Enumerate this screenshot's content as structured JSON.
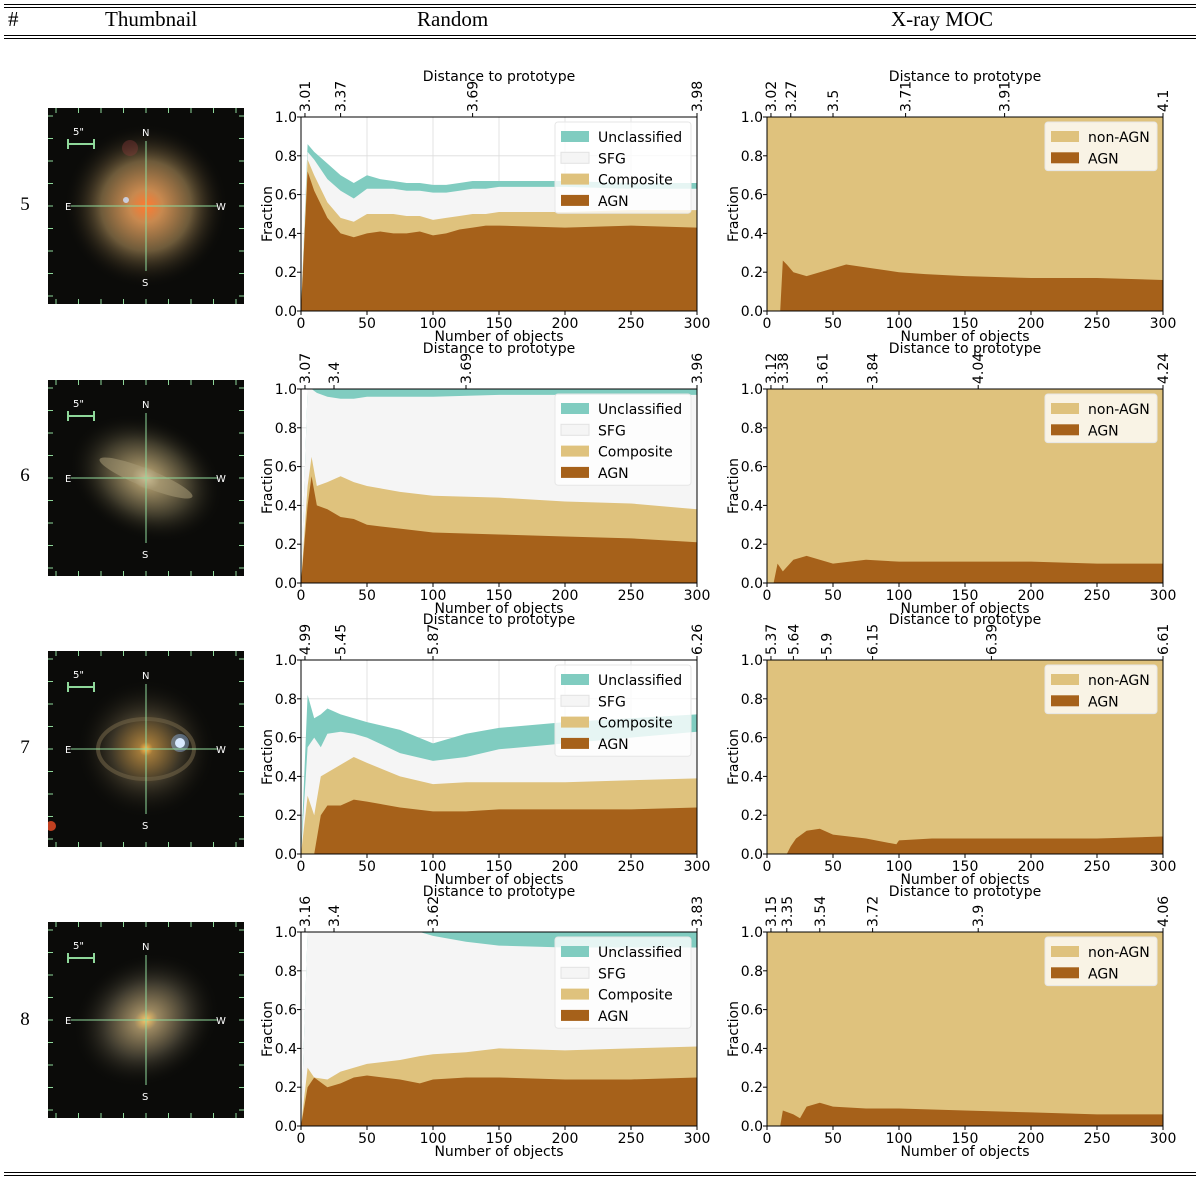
{
  "table": {
    "headers": {
      "num": "#",
      "thumbnail": "Thumbnail",
      "random": "Random",
      "xray": "X-ray MOC"
    },
    "compass": {
      "n": "N",
      "s": "S",
      "e": "E",
      "w": "W",
      "scale": "5\""
    }
  },
  "colors": {
    "unclassified": "#80ccc0",
    "sfg": "#f5f5f5",
    "composite": "#dfc27d",
    "agn": "#a6611a",
    "nonagn": "#dfc27d"
  },
  "chart_data": [
    {
      "type": "area",
      "row": "5",
      "panel": "Random",
      "title": "Distance to prototype",
      "xlabel": "Number of objects",
      "ylabel": "Fraction",
      "xlim": [
        0,
        300
      ],
      "ylim": [
        0.0,
        1.0
      ],
      "xticks": [
        "0",
        "50",
        "100",
        "150",
        "200",
        "250",
        "300"
      ],
      "yticks": [
        "0.0",
        "0.2",
        "0.4",
        "0.6",
        "0.8",
        "1.0"
      ],
      "top_ticks": [
        {
          "x": 3,
          "label": "3.01"
        },
        {
          "x": 30,
          "label": "3.37"
        },
        {
          "x": 130,
          "label": "3.69"
        },
        {
          "x": 300,
          "label": "3.98"
        }
      ],
      "x": [
        0,
        5,
        10,
        20,
        30,
        40,
        50,
        60,
        70,
        80,
        90,
        100,
        110,
        120,
        130,
        140,
        150,
        200,
        250,
        300
      ],
      "series": [
        {
          "name": "AGN",
          "values": [
            0.0,
            0.72,
            0.62,
            0.48,
            0.4,
            0.38,
            0.4,
            0.41,
            0.4,
            0.4,
            0.41,
            0.39,
            0.4,
            0.42,
            0.43,
            0.44,
            0.44,
            0.43,
            0.44,
            0.43
          ]
        },
        {
          "name": "Composite",
          "values": [
            0.0,
            0.78,
            0.7,
            0.56,
            0.48,
            0.46,
            0.5,
            0.5,
            0.5,
            0.49,
            0.49,
            0.47,
            0.48,
            0.49,
            0.5,
            0.5,
            0.51,
            0.51,
            0.52,
            0.52
          ]
        },
        {
          "name": "SFG",
          "values": [
            0.0,
            0.82,
            0.78,
            0.68,
            0.62,
            0.58,
            0.63,
            0.63,
            0.63,
            0.62,
            0.62,
            0.61,
            0.61,
            0.62,
            0.63,
            0.63,
            0.64,
            0.64,
            0.63,
            0.63
          ]
        },
        {
          "name": "Unclassified",
          "values": [
            0.0,
            0.86,
            0.82,
            0.76,
            0.7,
            0.66,
            0.7,
            0.68,
            0.67,
            0.66,
            0.66,
            0.65,
            0.65,
            0.66,
            0.67,
            0.67,
            0.67,
            0.67,
            0.66,
            0.66
          ]
        }
      ],
      "legend": [
        "Unclassified",
        "SFG",
        "Composite",
        "AGN"
      ]
    },
    {
      "type": "area",
      "row": "5",
      "panel": "X-ray MOC",
      "title": "Distance to prototype",
      "xlabel": "Number of objects",
      "ylabel": "Fraction",
      "xlim": [
        0,
        300
      ],
      "ylim": [
        0.0,
        1.0
      ],
      "xticks": [
        "0",
        "50",
        "100",
        "150",
        "200",
        "250",
        "300"
      ],
      "yticks": [
        "0.0",
        "0.2",
        "0.4",
        "0.6",
        "0.8",
        "1.0"
      ],
      "top_ticks": [
        {
          "x": 3,
          "label": "3.02"
        },
        {
          "x": 18,
          "label": "3.27"
        },
        {
          "x": 50,
          "label": "3.5"
        },
        {
          "x": 105,
          "label": "3.71"
        },
        {
          "x": 180,
          "label": "3.91"
        },
        {
          "x": 300,
          "label": "4.1"
        }
      ],
      "x": [
        0,
        10,
        12,
        15,
        20,
        30,
        40,
        50,
        60,
        80,
        100,
        120,
        150,
        200,
        250,
        300
      ],
      "series": [
        {
          "name": "AGN",
          "values": [
            0.0,
            0.0,
            0.26,
            0.24,
            0.2,
            0.18,
            0.2,
            0.22,
            0.24,
            0.22,
            0.2,
            0.19,
            0.18,
            0.17,
            0.17,
            0.16
          ]
        },
        {
          "name": "non-AGN",
          "values": [
            1.0,
            1.0,
            1.0,
            1.0,
            1.0,
            1.0,
            1.0,
            1.0,
            1.0,
            1.0,
            1.0,
            1.0,
            1.0,
            1.0,
            1.0,
            1.0
          ]
        }
      ],
      "legend": [
        "non-AGN",
        "AGN"
      ]
    },
    {
      "type": "area",
      "row": "6",
      "panel": "Random",
      "title": "Distance to prototype",
      "xlabel": "Number of objects",
      "ylabel": "Fraction",
      "xlim": [
        0,
        300
      ],
      "ylim": [
        0.0,
        1.0
      ],
      "xticks": [
        "0",
        "50",
        "100",
        "150",
        "200",
        "250",
        "300"
      ],
      "yticks": [
        "0.0",
        "0.2",
        "0.4",
        "0.6",
        "0.8",
        "1.0"
      ],
      "top_ticks": [
        {
          "x": 3,
          "label": "3.07"
        },
        {
          "x": 25,
          "label": "3.4"
        },
        {
          "x": 125,
          "label": "3.69"
        },
        {
          "x": 300,
          "label": "3.96"
        }
      ],
      "x": [
        0,
        5,
        8,
        12,
        20,
        30,
        40,
        50,
        75,
        100,
        150,
        200,
        250,
        300
      ],
      "series": [
        {
          "name": "AGN",
          "values": [
            0.0,
            0.4,
            0.55,
            0.4,
            0.38,
            0.34,
            0.33,
            0.3,
            0.28,
            0.26,
            0.25,
            0.24,
            0.23,
            0.21
          ]
        },
        {
          "name": "Composite",
          "values": [
            0.0,
            0.5,
            0.65,
            0.5,
            0.52,
            0.55,
            0.52,
            0.5,
            0.47,
            0.45,
            0.44,
            0.42,
            0.41,
            0.38
          ]
        },
        {
          "name": "SFG",
          "values": [
            0.0,
            1.0,
            1.0,
            0.98,
            0.96,
            0.95,
            0.95,
            0.96,
            0.96,
            0.96,
            0.97,
            0.97,
            0.97,
            0.97
          ]
        },
        {
          "name": "Unclassified",
          "values": [
            0.0,
            1.0,
            1.0,
            1.0,
            1.0,
            1.0,
            1.0,
            1.0,
            1.0,
            1.0,
            1.0,
            1.0,
            1.0,
            1.0
          ]
        }
      ],
      "legend": [
        "Unclassified",
        "SFG",
        "Composite",
        "AGN"
      ]
    },
    {
      "type": "area",
      "row": "6",
      "panel": "X-ray MOC",
      "title": "Distance to prototype",
      "xlabel": "Number of objects",
      "ylabel": "Fraction",
      "xlim": [
        0,
        300
      ],
      "ylim": [
        0.0,
        1.0
      ],
      "xticks": [
        "0",
        "50",
        "100",
        "150",
        "200",
        "250",
        "300"
      ],
      "yticks": [
        "0.0",
        "0.2",
        "0.4",
        "0.6",
        "0.8",
        "1.0"
      ],
      "top_ticks": [
        {
          "x": 3,
          "label": "3.12"
        },
        {
          "x": 12,
          "label": "3.38"
        },
        {
          "x": 42,
          "label": "3.61"
        },
        {
          "x": 80,
          "label": "3.84"
        },
        {
          "x": 160,
          "label": "4.04"
        },
        {
          "x": 300,
          "label": "4.24"
        }
      ],
      "x": [
        0,
        5,
        8,
        12,
        20,
        30,
        40,
        50,
        75,
        100,
        150,
        200,
        250,
        300
      ],
      "series": [
        {
          "name": "AGN",
          "values": [
            0.0,
            0.0,
            0.1,
            0.06,
            0.12,
            0.14,
            0.12,
            0.1,
            0.12,
            0.11,
            0.11,
            0.11,
            0.1,
            0.1
          ]
        },
        {
          "name": "non-AGN",
          "values": [
            1.0,
            1.0,
            1.0,
            1.0,
            1.0,
            1.0,
            1.0,
            1.0,
            1.0,
            1.0,
            1.0,
            1.0,
            1.0,
            1.0
          ]
        }
      ],
      "legend": [
        "non-AGN",
        "AGN"
      ]
    },
    {
      "type": "area",
      "row": "7",
      "panel": "Random",
      "title": "Distance to prototype",
      "xlabel": "Number of objects",
      "ylabel": "Fraction",
      "xlim": [
        0,
        300
      ],
      "ylim": [
        0.0,
        1.0
      ],
      "xticks": [
        "0",
        "50",
        "100",
        "150",
        "200",
        "250",
        "300"
      ],
      "yticks": [
        "0.0",
        "0.2",
        "0.4",
        "0.6",
        "0.8",
        "1.0"
      ],
      "top_ticks": [
        {
          "x": 3,
          "label": "4.99"
        },
        {
          "x": 30,
          "label": "5.45"
        },
        {
          "x": 100,
          "label": "5.87"
        },
        {
          "x": 300,
          "label": "6.26"
        }
      ],
      "x": [
        0,
        5,
        10,
        15,
        20,
        30,
        40,
        50,
        75,
        100,
        125,
        150,
        200,
        250,
        300
      ],
      "series": [
        {
          "name": "AGN",
          "values": [
            0.0,
            0.0,
            0.0,
            0.2,
            0.25,
            0.25,
            0.28,
            0.27,
            0.24,
            0.22,
            0.22,
            0.23,
            0.23,
            0.23,
            0.24
          ]
        },
        {
          "name": "Composite",
          "values": [
            0.0,
            0.3,
            0.2,
            0.4,
            0.42,
            0.46,
            0.5,
            0.47,
            0.4,
            0.36,
            0.37,
            0.37,
            0.37,
            0.38,
            0.39
          ]
        },
        {
          "name": "SFG",
          "values": [
            0.0,
            0.55,
            0.6,
            0.55,
            0.62,
            0.63,
            0.62,
            0.6,
            0.52,
            0.48,
            0.5,
            0.54,
            0.57,
            0.6,
            0.63
          ]
        },
        {
          "name": "Unclassified",
          "values": [
            0.0,
            0.82,
            0.7,
            0.72,
            0.75,
            0.72,
            0.7,
            0.68,
            0.64,
            0.57,
            0.62,
            0.65,
            0.68,
            0.7,
            0.72
          ]
        }
      ],
      "legend": [
        "Unclassified",
        "SFG",
        "Composite",
        "AGN"
      ]
    },
    {
      "type": "area",
      "row": "7",
      "panel": "X-ray MOC",
      "title": "Distance to prototype",
      "xlabel": "Number of objects",
      "ylabel": "Fraction",
      "xlim": [
        0,
        300
      ],
      "ylim": [
        0.0,
        1.0
      ],
      "xticks": [
        "0",
        "50",
        "100",
        "150",
        "200",
        "250",
        "300"
      ],
      "yticks": [
        "0.0",
        "0.2",
        "0.4",
        "0.6",
        "0.8",
        "1.0"
      ],
      "top_ticks": [
        {
          "x": 3,
          "label": "5.37"
        },
        {
          "x": 20,
          "label": "5.64"
        },
        {
          "x": 45,
          "label": "5.9"
        },
        {
          "x": 80,
          "label": "6.15"
        },
        {
          "x": 170,
          "label": "6.39"
        },
        {
          "x": 300,
          "label": "6.61"
        }
      ],
      "x": [
        0,
        15,
        18,
        22,
        30,
        40,
        50,
        75,
        98,
        100,
        125,
        150,
        200,
        250,
        300
      ],
      "series": [
        {
          "name": "AGN",
          "values": [
            0.0,
            0.0,
            0.04,
            0.08,
            0.12,
            0.13,
            0.1,
            0.08,
            0.05,
            0.07,
            0.08,
            0.08,
            0.08,
            0.08,
            0.09
          ]
        },
        {
          "name": "non-AGN",
          "values": [
            1.0,
            1.0,
            1.0,
            1.0,
            1.0,
            1.0,
            1.0,
            1.0,
            1.0,
            1.0,
            1.0,
            1.0,
            1.0,
            1.0,
            1.0
          ]
        }
      ],
      "legend": [
        "non-AGN",
        "AGN"
      ]
    },
    {
      "type": "area",
      "row": "8",
      "panel": "Random",
      "title": "Distance to prototype",
      "xlabel": "Number of objects",
      "ylabel": "Fraction",
      "xlim": [
        0,
        300
      ],
      "ylim": [
        0.0,
        1.0
      ],
      "xticks": [
        "0",
        "50",
        "100",
        "150",
        "200",
        "250",
        "300"
      ],
      "yticks": [
        "0.0",
        "0.2",
        "0.4",
        "0.6",
        "0.8",
        "1.0"
      ],
      "top_ticks": [
        {
          "x": 3,
          "label": "3.16"
        },
        {
          "x": 25,
          "label": "3.4"
        },
        {
          "x": 100,
          "label": "3.62"
        },
        {
          "x": 300,
          "label": "3.83"
        }
      ],
      "x": [
        0,
        5,
        10,
        20,
        30,
        40,
        50,
        75,
        90,
        100,
        125,
        150,
        200,
        250,
        300
      ],
      "series": [
        {
          "name": "AGN",
          "values": [
            0.0,
            0.2,
            0.25,
            0.2,
            0.22,
            0.25,
            0.26,
            0.24,
            0.22,
            0.24,
            0.25,
            0.25,
            0.24,
            0.24,
            0.25
          ]
        },
        {
          "name": "Composite",
          "values": [
            0.0,
            0.3,
            0.25,
            0.24,
            0.28,
            0.3,
            0.32,
            0.34,
            0.36,
            0.37,
            0.38,
            0.4,
            0.39,
            0.4,
            0.41
          ]
        },
        {
          "name": "SFG",
          "values": [
            0.0,
            1.0,
            1.0,
            1.0,
            1.0,
            1.0,
            1.0,
            1.0,
            1.0,
            0.98,
            0.95,
            0.93,
            0.92,
            0.92,
            0.92
          ]
        },
        {
          "name": "Unclassified",
          "values": [
            0.0,
            1.0,
            1.0,
            1.0,
            1.0,
            1.0,
            1.0,
            1.0,
            1.0,
            1.0,
            1.0,
            1.0,
            1.0,
            1.0,
            1.0
          ]
        }
      ],
      "legend": [
        "Unclassified",
        "SFG",
        "Composite",
        "AGN"
      ]
    },
    {
      "type": "area",
      "row": "8",
      "panel": "X-ray MOC",
      "title": "Distance to prototype",
      "xlabel": "Number of objects",
      "ylabel": "Fraction",
      "xlim": [
        0,
        300
      ],
      "ylim": [
        0.0,
        1.0
      ],
      "xticks": [
        "0",
        "50",
        "100",
        "150",
        "200",
        "250",
        "300"
      ],
      "yticks": [
        "0.0",
        "0.2",
        "0.4",
        "0.6",
        "0.8",
        "1.0"
      ],
      "top_ticks": [
        {
          "x": 3,
          "label": "3.15"
        },
        {
          "x": 15,
          "label": "3.35"
        },
        {
          "x": 40,
          "label": "3.54"
        },
        {
          "x": 80,
          "label": "3.72"
        },
        {
          "x": 160,
          "label": "3.9"
        },
        {
          "x": 300,
          "label": "4.06"
        }
      ],
      "x": [
        0,
        10,
        12,
        20,
        25,
        30,
        40,
        50,
        75,
        100,
        150,
        200,
        250,
        300
      ],
      "series": [
        {
          "name": "AGN",
          "values": [
            0.0,
            0.0,
            0.08,
            0.06,
            0.04,
            0.1,
            0.12,
            0.1,
            0.09,
            0.09,
            0.08,
            0.07,
            0.06,
            0.06
          ]
        },
        {
          "name": "non-AGN",
          "values": [
            1.0,
            1.0,
            1.0,
            1.0,
            1.0,
            1.0,
            1.0,
            1.0,
            1.0,
            1.0,
            1.0,
            1.0,
            1.0,
            1.0
          ]
        }
      ],
      "legend": [
        "non-AGN",
        "AGN"
      ]
    }
  ]
}
